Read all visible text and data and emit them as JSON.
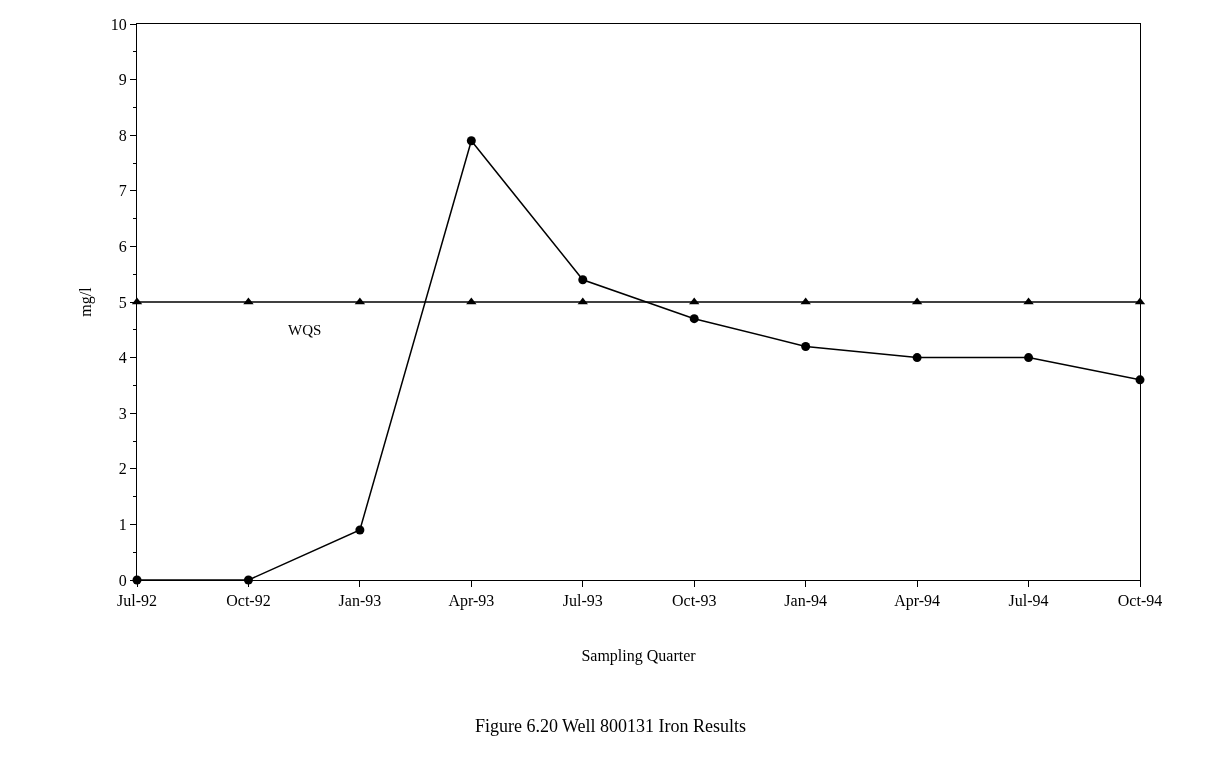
{
  "chart_data": {
    "type": "line",
    "title": "Figure 6.20 Well 800131 Iron Results",
    "xlabel": "Sampling Quarter",
    "ylabel": "mg/l",
    "categories": [
      "Jul-92",
      "Oct-92",
      "Jan-93",
      "Apr-93",
      "Jul-93",
      "Oct-93",
      "Jan-94",
      "Apr-94",
      "Jul-94",
      "Oct-94"
    ],
    "series": [
      {
        "color": "#000000",
        "marker": "circle",
        "values": [
          0,
          0,
          0.9,
          7.9,
          5.4,
          4.7,
          4.2,
          4.0,
          4.0,
          3.6
        ]
      },
      {
        "name": "WQS",
        "color": "#000000",
        "marker": "triangle",
        "values": [
          5,
          5,
          5,
          5,
          5,
          5,
          5,
          5,
          5,
          5
        ]
      }
    ],
    "ylim": [
      0,
      10
    ],
    "yticks": [
      0,
      1,
      2,
      3,
      4,
      5,
      6,
      7,
      8,
      9,
      10
    ],
    "grid": false,
    "legend": false,
    "line_style": "solid"
  }
}
